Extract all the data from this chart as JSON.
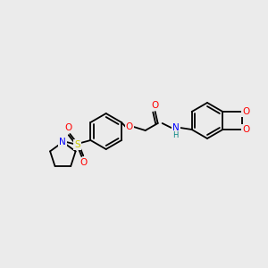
{
  "bg_color": "#ebebeb",
  "bond_color": "#000000",
  "atom_colors": {
    "O": "#ff0000",
    "N_amide": "#0000ff",
    "N_pyrrole": "#0000ff",
    "S": "#cccc00",
    "H": "#008080",
    "C": "#000000"
  },
  "font_size_atom": 7.5,
  "font_size_small": 6.0
}
